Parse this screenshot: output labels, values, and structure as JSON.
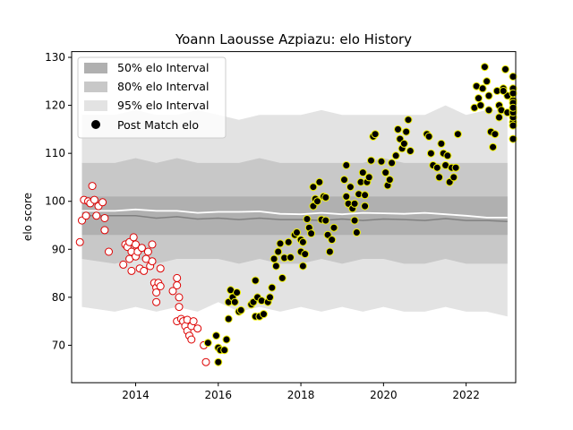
{
  "chart_data": {
    "type": "scatter",
    "title": "Yoann Laousse Azpiazu: elo History",
    "xlabel": "",
    "ylabel": "elo score",
    "xlim": [
      2012.45,
      2023.2
    ],
    "ylim": [
      62.2,
      131.2
    ],
    "xticks": [
      2014,
      2016,
      2018,
      2020,
      2022
    ],
    "yticks": [
      70,
      80,
      90,
      100,
      110,
      120,
      130
    ],
    "legend_position": "upper-left",
    "legend": [
      "50% elo Interval",
      "80% elo Interval",
      "95% elo Interval",
      "Post Match elo"
    ],
    "colors": {
      "band50": "#b0b0b0",
      "band80": "#c8c8c8",
      "band95": "#e3e3e3",
      "median_line": "#808080",
      "mean_line": "#ffffff",
      "early_fill": "#ffffff",
      "early_edge": "#dd0000",
      "late_fill": "#000000",
      "late_edge": "#f0f000"
    },
    "bands": {
      "x": [
        2012.7,
        2013.5,
        2014.0,
        2014.5,
        2015.0,
        2015.5,
        2016.0,
        2016.5,
        2017.0,
        2017.5,
        2018.0,
        2018.5,
        2019.0,
        2019.5,
        2020.0,
        2020.5,
        2021.0,
        2021.5,
        2022.0,
        2022.5,
        2023.0
      ],
      "p95_low": [
        78,
        77,
        78,
        77,
        78,
        77,
        79,
        77,
        78,
        77,
        78,
        77,
        78,
        77,
        78,
        77,
        77,
        78,
        77,
        77,
        76
      ],
      "p80_low": [
        88,
        87,
        88,
        87,
        88,
        88,
        88,
        87,
        88,
        87,
        87,
        88,
        87,
        88,
        88,
        87,
        87,
        88,
        87,
        87,
        87
      ],
      "p50_low": [
        93,
        93,
        93,
        93,
        93,
        93,
        93,
        93,
        93,
        93,
        93,
        93,
        93,
        93,
        93,
        93,
        93,
        93,
        93,
        93,
        93
      ],
      "median": [
        97,
        97,
        97,
        96.5,
        96.8,
        96.3,
        96.5,
        96.2,
        96.5,
        96.2,
        96.2,
        96.0,
        96.3,
        96.0,
        96.3,
        96.2,
        96.0,
        96.4,
        96.0,
        96.0,
        95.8
      ],
      "mean": [
        98,
        98,
        98.3,
        98.0,
        98.0,
        97.6,
        97.8,
        97.8,
        97.9,
        97.4,
        97.3,
        97.6,
        97.3,
        97.6,
        97.5,
        97.4,
        97.6,
        97.3,
        97.0,
        96.6,
        96.6
      ],
      "p50_high": [
        101,
        101,
        101,
        101,
        101,
        101,
        101,
        101,
        101,
        101,
        101,
        101,
        101,
        101,
        101,
        101,
        101,
        101,
        101,
        101,
        101
      ],
      "p80_high": [
        108,
        108,
        109,
        108,
        109,
        108,
        108,
        108,
        109,
        108,
        108,
        108,
        108,
        108,
        109,
        108,
        108,
        108,
        108,
        108,
        108
      ],
      "p95_high": [
        118,
        118,
        119,
        118,
        118,
        119,
        118,
        117,
        118,
        118,
        118,
        119,
        118,
        118,
        118,
        118,
        118,
        120,
        118,
        119,
        119
      ]
    },
    "series": [
      {
        "name": "",
        "style": "early",
        "points": [
          [
            2012.65,
            91.5
          ],
          [
            2012.7,
            96
          ],
          [
            2012.75,
            100.3
          ],
          [
            2012.8,
            97
          ],
          [
            2012.85,
            100
          ],
          [
            2012.9,
            99.6
          ],
          [
            2012.95,
            103.2
          ],
          [
            2013.0,
            100.3
          ],
          [
            2013.05,
            97
          ],
          [
            2013.1,
            99
          ],
          [
            2013.2,
            99.8
          ],
          [
            2013.25,
            96.5
          ],
          [
            2013.25,
            94
          ],
          [
            2013.35,
            89.5
          ],
          [
            2013.7,
            86.8
          ],
          [
            2013.75,
            91
          ],
          [
            2013.8,
            90.5
          ],
          [
            2013.85,
            88
          ],
          [
            2013.85,
            91.5
          ],
          [
            2013.9,
            89.5
          ],
          [
            2013.9,
            85.5
          ],
          [
            2013.95,
            92.5
          ],
          [
            2014.0,
            91
          ],
          [
            2014.0,
            88.5
          ],
          [
            2014.05,
            89.5
          ],
          [
            2014.1,
            86
          ],
          [
            2014.15,
            90.3
          ],
          [
            2014.2,
            85.5
          ],
          [
            2014.25,
            88
          ],
          [
            2014.3,
            89.5
          ],
          [
            2014.35,
            86.5
          ],
          [
            2014.4,
            91
          ],
          [
            2014.4,
            87.5
          ],
          [
            2014.45,
            83
          ],
          [
            2014.5,
            82
          ],
          [
            2014.5,
            81
          ],
          [
            2014.5,
            79
          ],
          [
            2014.55,
            83
          ],
          [
            2014.6,
            82.3
          ],
          [
            2014.6,
            86
          ],
          [
            2014.9,
            81.3
          ],
          [
            2015.0,
            84
          ],
          [
            2015.0,
            82.5
          ],
          [
            2015.05,
            80
          ],
          [
            2015.05,
            78
          ],
          [
            2015.0,
            75
          ],
          [
            2015.1,
            75.5
          ],
          [
            2015.15,
            75
          ],
          [
            2015.2,
            74
          ],
          [
            2015.25,
            75.3
          ],
          [
            2015.25,
            73
          ],
          [
            2015.3,
            72
          ],
          [
            2015.35,
            74
          ],
          [
            2015.35,
            71.2
          ],
          [
            2015.4,
            75
          ],
          [
            2015.5,
            73.5
          ],
          [
            2015.65,
            70
          ],
          [
            2015.7,
            66.5
          ]
        ]
      },
      {
        "name": "",
        "style": "late",
        "points": [
          [
            2015.75,
            70.5
          ],
          [
            2015.95,
            72
          ],
          [
            2016.0,
            69.5
          ],
          [
            2016.05,
            69
          ],
          [
            2016.0,
            66.5
          ],
          [
            2016.15,
            69
          ],
          [
            2016.2,
            71.2
          ],
          [
            2016.25,
            75.5
          ],
          [
            2016.25,
            79
          ],
          [
            2016.3,
            81.5
          ],
          [
            2016.35,
            80
          ],
          [
            2016.4,
            79
          ],
          [
            2016.45,
            81
          ],
          [
            2016.5,
            77
          ],
          [
            2016.55,
            77.3
          ],
          [
            2016.8,
            78.5
          ],
          [
            2016.85,
            79
          ],
          [
            2016.9,
            83.5
          ],
          [
            2016.9,
            76
          ],
          [
            2016.95,
            80
          ],
          [
            2017.0,
            76
          ],
          [
            2017.05,
            79.3
          ],
          [
            2017.1,
            76.5
          ],
          [
            2017.2,
            79
          ],
          [
            2017.25,
            80
          ],
          [
            2017.3,
            82
          ],
          [
            2017.35,
            88
          ],
          [
            2017.4,
            86.5
          ],
          [
            2017.45,
            89.5
          ],
          [
            2017.5,
            91.2
          ],
          [
            2017.55,
            84
          ],
          [
            2017.6,
            88.2
          ],
          [
            2017.7,
            91.5
          ],
          [
            2017.75,
            88.3
          ],
          [
            2017.85,
            93
          ],
          [
            2017.9,
            93.5
          ],
          [
            2018.0,
            92
          ],
          [
            2018.0,
            89.5
          ],
          [
            2018.05,
            91.5
          ],
          [
            2018.05,
            86.5
          ],
          [
            2018.1,
            89
          ],
          [
            2018.15,
            96.3
          ],
          [
            2018.2,
            94.5
          ],
          [
            2018.25,
            93.3
          ],
          [
            2018.3,
            99
          ],
          [
            2018.3,
            103
          ],
          [
            2018.35,
            100.5
          ],
          [
            2018.4,
            100
          ],
          [
            2018.45,
            104
          ],
          [
            2018.5,
            96.2
          ],
          [
            2018.55,
            101
          ],
          [
            2018.6,
            100.8
          ],
          [
            2018.6,
            96
          ],
          [
            2018.65,
            93
          ],
          [
            2018.7,
            89.5
          ],
          [
            2018.75,
            92
          ],
          [
            2018.8,
            94.5
          ],
          [
            2019.05,
            104.5
          ],
          [
            2019.1,
            107.5
          ],
          [
            2019.1,
            101
          ],
          [
            2019.15,
            99.5
          ],
          [
            2019.2,
            103
          ],
          [
            2019.25,
            98.5
          ],
          [
            2019.3,
            99.5
          ],
          [
            2019.3,
            96
          ],
          [
            2019.35,
            93.5
          ],
          [
            2019.4,
            101.5
          ],
          [
            2019.45,
            104
          ],
          [
            2019.5,
            106
          ],
          [
            2019.55,
            99
          ],
          [
            2019.55,
            101.3
          ],
          [
            2019.6,
            104
          ],
          [
            2019.65,
            105
          ],
          [
            2019.7,
            108.5
          ],
          [
            2019.75,
            113.5
          ],
          [
            2019.8,
            114
          ],
          [
            2019.95,
            108.3
          ],
          [
            2020.05,
            106
          ],
          [
            2020.1,
            103.3
          ],
          [
            2020.15,
            104.5
          ],
          [
            2020.2,
            108
          ],
          [
            2020.3,
            109.5
          ],
          [
            2020.35,
            115
          ],
          [
            2020.4,
            113
          ],
          [
            2020.45,
            111
          ],
          [
            2020.5,
            112
          ],
          [
            2020.55,
            114.5
          ],
          [
            2020.6,
            117
          ],
          [
            2020.65,
            110.5
          ],
          [
            2021.05,
            114
          ],
          [
            2021.1,
            113.5
          ],
          [
            2021.15,
            110
          ],
          [
            2021.2,
            107.5
          ],
          [
            2021.3,
            107
          ],
          [
            2021.35,
            105
          ],
          [
            2021.4,
            112
          ],
          [
            2021.45,
            110
          ],
          [
            2021.5,
            107.5
          ],
          [
            2021.55,
            109.5
          ],
          [
            2021.6,
            104
          ],
          [
            2021.65,
            107
          ],
          [
            2021.7,
            105
          ],
          [
            2021.75,
            107
          ],
          [
            2021.8,
            114
          ],
          [
            2022.2,
            119.5
          ],
          [
            2022.25,
            124
          ],
          [
            2022.3,
            121.5
          ],
          [
            2022.35,
            120
          ],
          [
            2022.4,
            123.5
          ],
          [
            2022.45,
            128
          ],
          [
            2022.5,
            125
          ],
          [
            2022.55,
            122
          ],
          [
            2022.55,
            119
          ],
          [
            2022.6,
            114.5
          ],
          [
            2022.65,
            111.3
          ],
          [
            2022.7,
            114
          ],
          [
            2022.75,
            123
          ],
          [
            2022.8,
            120
          ],
          [
            2022.8,
            117.5
          ],
          [
            2022.85,
            119
          ],
          [
            2022.9,
            123.5
          ],
          [
            2022.95,
            127.5
          ],
          [
            2023.0,
            122
          ],
          [
            2023.0,
            118.5
          ],
          [
            2022.9,
            123
          ],
          [
            2023.35,
            121
          ],
          [
            2023.4,
            126
          ],
          [
            2023.45,
            123.5
          ],
          [
            2023.5,
            122.5
          ],
          [
            2023.5,
            120.5
          ],
          [
            2023.55,
            119
          ],
          [
            2023.55,
            116.5
          ],
          [
            2023.6,
            113
          ],
          [
            2023.6,
            117.5
          ],
          [
            2023.65,
            115.8
          ],
          [
            2023.65,
            118.5
          ],
          [
            2023.7,
            119.5
          ]
        ]
      }
    ]
  }
}
